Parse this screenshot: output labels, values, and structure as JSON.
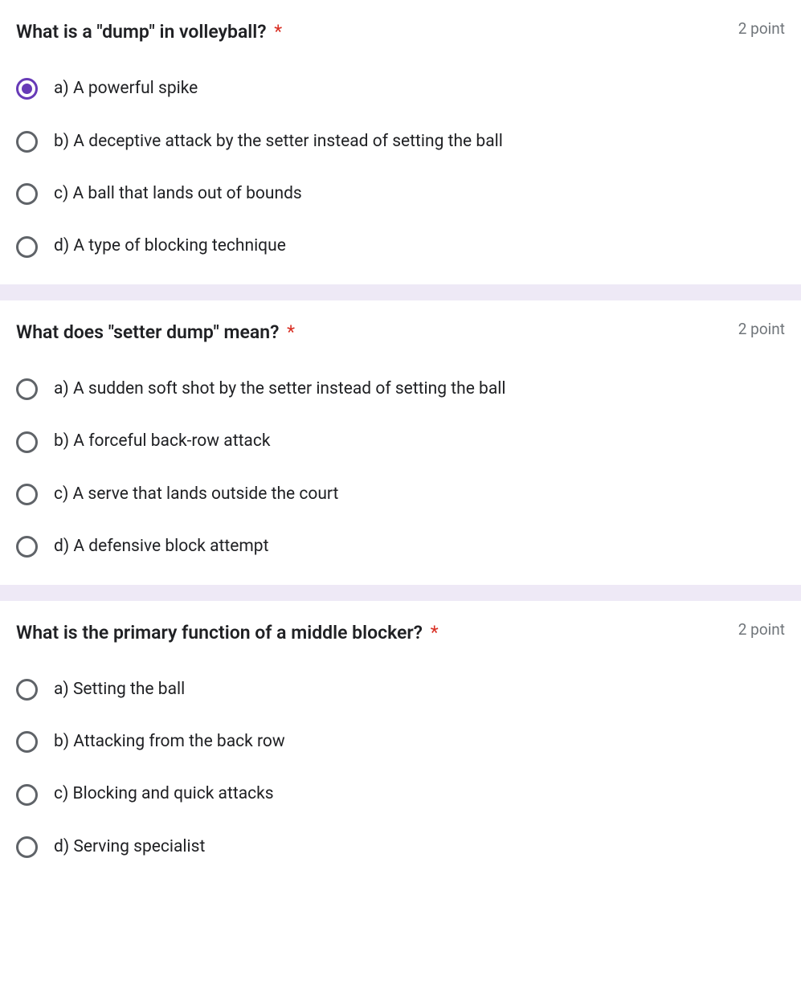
{
  "colors": {
    "background": "#ffffff",
    "separator": "#eee9f6",
    "text_primary": "#202124",
    "text_secondary": "#70757a",
    "required": "#d93025",
    "radio_border": "#5f6368",
    "radio_selected": "#673ab7"
  },
  "typography": {
    "question_fontsize": 23,
    "question_fontweight": 600,
    "points_fontsize": 19,
    "option_fontsize": 21
  },
  "required_marker": "*",
  "questions": [
    {
      "title": "What is a \"dump\" in volleyball?",
      "required": true,
      "points_label": "2 point",
      "selected_index": 0,
      "options": [
        "a) A powerful spike",
        "b) A deceptive attack by the setter instead of setting the ball",
        "c) A ball that lands out of bounds",
        "d) A type of blocking technique"
      ]
    },
    {
      "title": "What does \"setter dump\" mean?",
      "required": true,
      "points_label": "2 point",
      "selected_index": -1,
      "options": [
        "a) A sudden soft shot by the setter instead of setting the ball",
        "b) A forceful back-row attack",
        "c) A serve that lands outside the court",
        "d) A defensive block attempt"
      ]
    },
    {
      "title": "What is the primary function of a middle blocker?",
      "required": true,
      "points_label": "2 point",
      "selected_index": -1,
      "options": [
        "a) Setting the ball",
        "b) Attacking from the back row",
        "c) Blocking and quick attacks",
        "d) Serving specialist"
      ]
    }
  ]
}
